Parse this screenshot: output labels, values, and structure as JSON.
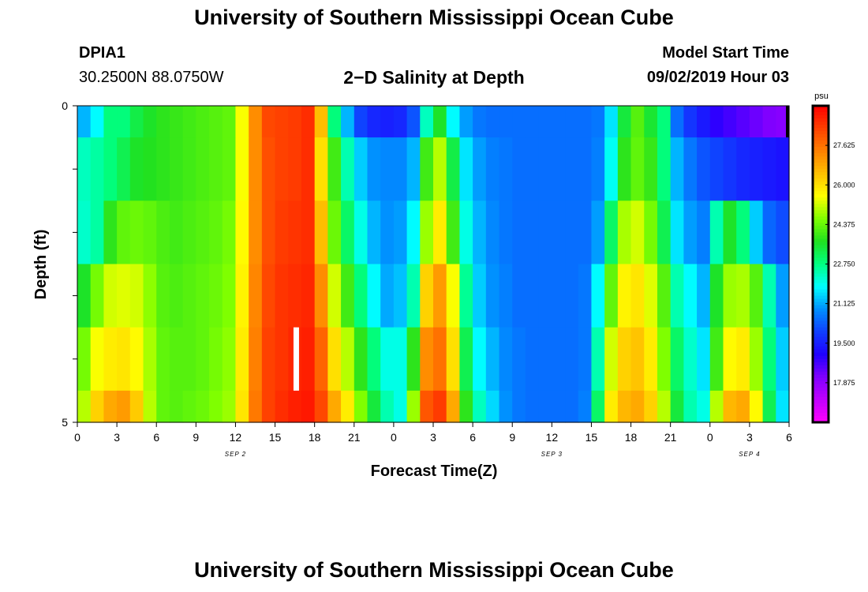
{
  "page": {
    "title": "University of Southern Mississippi Ocean Cube",
    "footer_title": "University of Southern Mississippi Ocean Cube"
  },
  "header": {
    "station": "DPIA1",
    "coords": "30.2500N 88.0750W",
    "plot_title": "2−D Salinity at Depth",
    "start_label": "Model Start Time",
    "start_value": "09/02/2019 Hour 03"
  },
  "chart_data": {
    "type": "heatmap",
    "title": "2−D Salinity at Depth",
    "xlabel": "Forecast Time(Z)",
    "ylabel": "Depth (ft)",
    "x_ticks": [
      "0",
      "3",
      "6",
      "9",
      "12",
      "15",
      "18",
      "21",
      "0",
      "3",
      "6",
      "9",
      "12",
      "15",
      "18",
      "21",
      "0",
      "3",
      "6"
    ],
    "x_range_hours": [
      0,
      54
    ],
    "date_labels": [
      {
        "hour": 12,
        "text": "SEP 2"
      },
      {
        "hour": 36,
        "text": "SEP 3"
      },
      {
        "hour": 51,
        "text": "SEP 4"
      }
    ],
    "y_range": [
      0,
      5
    ],
    "y_tick_labels": [
      "0",
      "5"
    ],
    "y_minor_ticks": [
      0,
      1,
      2,
      3,
      4,
      5
    ],
    "colorbar": {
      "units": "psu",
      "vmin": 16.25,
      "vmax": 29.25,
      "tick_labels": [
        "27.625",
        "26.000",
        "24.375",
        "22.750",
        "21.125",
        "19.500",
        "17.875"
      ],
      "colors": [
        "#ff00ff",
        "#c000ff",
        "#8000ff",
        "#2000ff",
        "#1040ff",
        "#0090ff",
        "#00ffff",
        "#00ff80",
        "#20e020",
        "#80ff00",
        "#ffff00",
        "#ffc000",
        "#ff8000",
        "#ff4000",
        "#ff0000"
      ]
    },
    "depth_layers": [
      0,
      0.5,
      1.5,
      2.5,
      3.5,
      4.5,
      5.0
    ],
    "series": [
      {
        "name": "layer_0_0.5ft",
        "values": [
          21.2,
          21.8,
          22.8,
          22.8,
          23.3,
          23.6,
          23.8,
          23.9,
          24.0,
          24.1,
          24.2,
          24.3,
          25.5,
          27.2,
          28.2,
          28.3,
          28.4,
          28.6,
          26.5,
          22.8,
          21.2,
          20.0,
          19.6,
          19.5,
          19.6,
          20.2,
          22.3,
          23.6,
          21.8,
          21.0,
          20.6,
          20.5,
          20.5,
          20.5,
          20.5,
          20.5,
          20.5,
          20.5,
          20.5,
          20.6,
          21.6,
          23.4,
          24.2,
          23.5,
          22.8,
          20.5,
          19.8,
          19.4,
          18.9,
          18.7,
          18.5,
          18.3,
          18.1,
          18.0
        ]
      },
      {
        "name": "layer_0.5_1.5ft",
        "values": [
          22.3,
          22.5,
          22.8,
          23.2,
          23.6,
          23.7,
          23.8,
          23.9,
          24.0,
          24.1,
          24.2,
          24.3,
          25.5,
          27.2,
          28.1,
          28.3,
          28.4,
          28.6,
          26.0,
          24.0,
          22.4,
          21.4,
          20.9,
          20.8,
          20.8,
          21.2,
          24.0,
          25.0,
          23.3,
          21.6,
          21.0,
          20.7,
          20.6,
          20.5,
          20.5,
          20.5,
          20.5,
          20.5,
          20.5,
          20.7,
          21.9,
          23.8,
          24.3,
          23.9,
          22.8,
          21.2,
          20.6,
          20.2,
          20.0,
          19.8,
          19.6,
          19.5,
          19.4,
          19.3
        ]
      },
      {
        "name": "layer_1.5_2.5ft",
        "values": [
          22.2,
          22.5,
          23.8,
          24.3,
          24.4,
          24.3,
          24.1,
          24.0,
          24.1,
          24.2,
          24.3,
          24.5,
          25.6,
          27.2,
          28.1,
          28.4,
          28.5,
          28.6,
          26.5,
          24.4,
          23.0,
          22.0,
          21.2,
          20.9,
          21.0,
          21.8,
          24.8,
          25.8,
          24.0,
          22.0,
          21.2,
          20.8,
          20.6,
          20.5,
          20.5,
          20.5,
          20.5,
          20.5,
          20.5,
          21.0,
          23.0,
          24.9,
          25.2,
          24.5,
          23.2,
          21.6,
          21.0,
          20.7,
          22.4,
          23.6,
          22.8,
          21.4,
          20.4,
          20.1
        ]
      },
      {
        "name": "layer_2.5_3.5ft",
        "values": [
          23.6,
          24.5,
          25.2,
          25.3,
          25.2,
          24.7,
          24.2,
          24.1,
          24.2,
          24.3,
          24.4,
          24.6,
          25.7,
          27.3,
          28.2,
          28.5,
          28.6,
          28.7,
          27.2,
          25.2,
          24.0,
          22.8,
          21.8,
          21.1,
          21.3,
          22.4,
          26.2,
          27.0,
          25.5,
          22.6,
          21.4,
          20.9,
          20.7,
          20.5,
          20.5,
          20.5,
          20.5,
          20.5,
          20.6,
          21.8,
          24.3,
          25.7,
          25.9,
          25.3,
          24.2,
          22.4,
          21.8,
          21.2,
          23.6,
          24.8,
          24.9,
          24.2,
          22.4,
          21.0
        ]
      },
      {
        "name": "layer_3.5_4.5ft",
        "values": [
          24.5,
          25.5,
          25.8,
          25.9,
          25.6,
          24.9,
          24.3,
          24.2,
          24.2,
          24.3,
          24.5,
          24.7,
          25.8,
          27.4,
          28.3,
          28.5,
          28.7,
          28.8,
          27.8,
          26.0,
          25.0,
          23.8,
          22.8,
          22.0,
          22.0,
          23.8,
          27.2,
          27.6,
          26.0,
          23.2,
          21.8,
          21.2,
          20.8,
          20.6,
          20.5,
          20.5,
          20.5,
          20.5,
          20.6,
          22.4,
          25.2,
          26.2,
          26.4,
          25.8,
          24.6,
          23.0,
          22.2,
          21.6,
          24.0,
          25.6,
          25.8,
          24.8,
          22.8,
          21.4
        ]
      },
      {
        "name": "layer_4.5_5ft",
        "values": [
          25.0,
          26.2,
          26.8,
          27.0,
          26.3,
          25.0,
          24.3,
          24.2,
          24.3,
          24.4,
          24.6,
          24.8,
          25.9,
          27.5,
          28.3,
          28.6,
          28.8,
          28.9,
          28.2,
          26.8,
          25.8,
          24.6,
          23.4,
          22.4,
          22.0,
          24.8,
          28.0,
          28.4,
          26.8,
          23.8,
          22.3,
          21.5,
          20.9,
          20.6,
          20.5,
          20.5,
          20.5,
          20.5,
          20.7,
          23.0,
          25.8,
          26.6,
          26.8,
          26.2,
          25.0,
          23.4,
          22.4,
          22.0,
          25.0,
          26.6,
          26.8,
          25.6,
          23.2,
          21.6
        ]
      }
    ]
  }
}
